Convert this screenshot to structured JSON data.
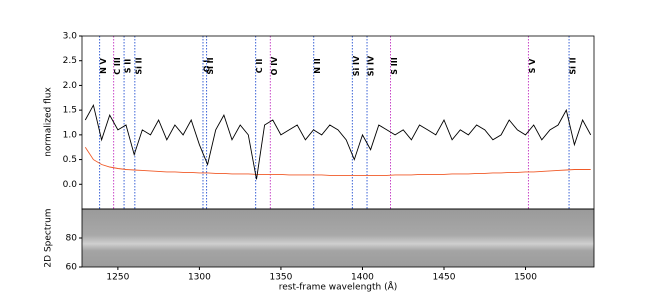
{
  "chart_data": [
    {
      "type": "line",
      "ylabel": "normalized flux",
      "xlim": [
        1228,
        1542
      ],
      "ylim": [
        -0.5,
        3.0
      ],
      "yticks": [
        {
          "value": 0,
          "label": "0.0"
        },
        0.5,
        {
          "value": 1,
          "label": "1.0"
        },
        1.5,
        {
          "value": 2,
          "label": "2.0"
        },
        2.5,
        {
          "value": 3,
          "label": "3.0"
        }
      ],
      "x": [
        1230,
        1235,
        1240,
        1245,
        1250,
        1255,
        1260,
        1265,
        1270,
        1275,
        1280,
        1285,
        1290,
        1295,
        1300,
        1305,
        1310,
        1315,
        1320,
        1325,
        1330,
        1335,
        1340,
        1345,
        1350,
        1355,
        1360,
        1365,
        1370,
        1375,
        1380,
        1385,
        1390,
        1395,
        1400,
        1405,
        1410,
        1415,
        1420,
        1425,
        1430,
        1435,
        1440,
        1445,
        1450,
        1455,
        1460,
        1465,
        1470,
        1475,
        1480,
        1485,
        1490,
        1495,
        1500,
        1505,
        1510,
        1515,
        1520,
        1525,
        1530,
        1535,
        1540
      ],
      "series": [
        {
          "color": "#000000",
          "values": [
            1.3,
            1.6,
            0.9,
            1.4,
            1.1,
            1.2,
            0.6,
            1.1,
            1.0,
            1.3,
            0.9,
            1.2,
            1.0,
            1.3,
            0.8,
            0.4,
            1.1,
            1.4,
            0.9,
            1.2,
            1.0,
            0.1,
            1.2,
            1.3,
            1.0,
            1.1,
            1.2,
            0.9,
            1.1,
            1.0,
            1.2,
            1.1,
            0.9,
            0.5,
            1.0,
            0.7,
            1.2,
            1.1,
            1.0,
            1.1,
            0.9,
            1.2,
            1.1,
            1.0,
            1.3,
            0.9,
            1.1,
            1.0,
            1.2,
            1.1,
            0.9,
            1.0,
            1.3,
            1.1,
            1.0,
            1.2,
            0.9,
            1.1,
            1.2,
            1.5,
            0.8,
            1.3,
            1.0
          ]
        },
        {
          "color": "#f05a28",
          "values": [
            0.75,
            0.5,
            0.4,
            0.35,
            0.32,
            0.3,
            0.29,
            0.28,
            0.27,
            0.26,
            0.25,
            0.25,
            0.24,
            0.24,
            0.23,
            0.23,
            0.22,
            0.22,
            0.21,
            0.21,
            0.21,
            0.2,
            0.2,
            0.2,
            0.2,
            0.19,
            0.19,
            0.19,
            0.19,
            0.19,
            0.18,
            0.18,
            0.18,
            0.18,
            0.18,
            0.18,
            0.18,
            0.18,
            0.19,
            0.19,
            0.19,
            0.2,
            0.2,
            0.2,
            0.2,
            0.21,
            0.21,
            0.21,
            0.22,
            0.22,
            0.23,
            0.23,
            0.24,
            0.24,
            0.25,
            0.25,
            0.26,
            0.27,
            0.28,
            0.29,
            0.3,
            0.3,
            0.3
          ]
        }
      ],
      "lines": [
        {
          "label": "N V",
          "wavelength": 1238.8,
          "color": "#3a62d6"
        },
        {
          "label": "C III",
          "wavelength": 1247.4,
          "color": "#c846c8"
        },
        {
          "label": "S II",
          "wavelength": 1253.8,
          "color": "#3a62d6"
        },
        {
          "label": "Si II",
          "wavelength": 1260.4,
          "color": "#3a62d6"
        },
        {
          "label": "O I",
          "wavelength": 1302.2,
          "color": "#3a62d6"
        },
        {
          "label": "Si II",
          "wavelength": 1304.4,
          "color": "#3a62d6"
        },
        {
          "label": "C II",
          "wavelength": 1334.5,
          "color": "#3a62d6"
        },
        {
          "label": "O IV",
          "wavelength": 1343.5,
          "color": "#c846c8"
        },
        {
          "label": "N II",
          "wavelength": 1370.1,
          "color": "#3a62d6"
        },
        {
          "label": "Si IV",
          "wavelength": 1393.8,
          "color": "#3a62d6"
        },
        {
          "label": "Si IV",
          "wavelength": 1402.8,
          "color": "#3a62d6"
        },
        {
          "label": "S III",
          "wavelength": 1417.2,
          "color": "#c846c8"
        },
        {
          "label": "S V",
          "wavelength": 1501.8,
          "color": "#c846c8"
        },
        {
          "label": "Si II",
          "wavelength": 1526.7,
          "color": "#3a62d6"
        }
      ]
    },
    {
      "type": "image",
      "ylabel": "2D Spectrum",
      "xlabel": "rest-frame wavelength (Å)",
      "xlim": [
        1228,
        1542
      ],
      "xticks": [
        1250,
        1300,
        1350,
        1400,
        1450,
        1500
      ],
      "ylim": [
        60,
        100
      ],
      "yticks": [
        60,
        80
      ]
    }
  ]
}
